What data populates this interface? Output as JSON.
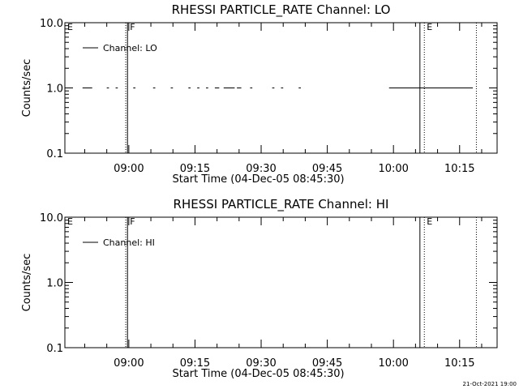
{
  "footer_timestamp": "21-Oct-2021 19:00",
  "chart_data": [
    {
      "type": "line",
      "title": "RHESSI PARTICLE_RATE Channel: LO",
      "xlabel": "Start Time (04-Dec-05 08:45:30)",
      "ylabel": "Counts/sec",
      "x_unit": "minutes since 08:45:30",
      "xlim": [
        0,
        98
      ],
      "ylim": [
        0.1,
        10.0
      ],
      "y_scale": "log",
      "xtick_labels": [
        "09:00",
        "09:15",
        "09:30",
        "09:45",
        "10:00",
        "10:15"
      ],
      "xtick_values": [
        14.5,
        29.5,
        44.5,
        59.5,
        74.5,
        89.5
      ],
      "ytick_labels": [
        "0.1",
        "1.0",
        "10.0"
      ],
      "ytick_values": [
        0.1,
        1.0,
        10.0
      ],
      "legend": {
        "position": "top-left",
        "entries": [
          "Channel: LO"
        ]
      },
      "series": [
        {
          "name": "Channel: LO",
          "segments": [
            {
              "x": [
                0.0,
                1.5
              ],
              "y": [
                1.0,
                1.0
              ]
            },
            {
              "x": [
                4.0,
                6.2
              ],
              "y": [
                1.0,
                1.0
              ]
            },
            {
              "x": [
                9.5,
                10.0
              ],
              "y": [
                1.0,
                1.0
              ]
            },
            {
              "x": [
                11.5,
                12.0
              ],
              "y": [
                1.0,
                1.0
              ]
            },
            {
              "x": [
                15.5,
                16.0
              ],
              "y": [
                1.0,
                1.0
              ]
            },
            {
              "x": [
                20.0,
                20.5
              ],
              "y": [
                1.0,
                1.0
              ]
            },
            {
              "x": [
                24.0,
                24.5
              ],
              "y": [
                1.0,
                1.0
              ]
            },
            {
              "x": [
                28.0,
                28.5
              ],
              "y": [
                1.0,
                1.0
              ]
            },
            {
              "x": [
                30.0,
                30.5
              ],
              "y": [
                1.0,
                1.0
              ]
            },
            {
              "x": [
                32.0,
                32.5
              ],
              "y": [
                1.0,
                1.0
              ]
            },
            {
              "x": [
                34.0,
                35.0
              ],
              "y": [
                1.0,
                1.0
              ]
            },
            {
              "x": [
                36.0,
                38.5
              ],
              "y": [
                1.0,
                1.0
              ]
            },
            {
              "x": [
                39.0,
                40.0
              ],
              "y": [
                1.0,
                1.0
              ]
            },
            {
              "x": [
                42.0,
                42.5
              ],
              "y": [
                1.0,
                1.0
              ]
            },
            {
              "x": [
                47.0,
                47.5
              ],
              "y": [
                1.0,
                1.0
              ]
            },
            {
              "x": [
                49.0,
                49.5
              ],
              "y": [
                1.0,
                1.0
              ]
            },
            {
              "x": [
                53.0,
                53.5
              ],
              "y": [
                1.0,
                1.0
              ]
            },
            {
              "x": [
                73.5,
                92.5
              ],
              "y": [
                1.0,
                1.0
              ]
            }
          ]
        }
      ],
      "annotations": [
        {
          "label": "E",
          "x": 0.0,
          "line": "none"
        },
        {
          "label": "",
          "x": 13.8,
          "line": "dotted"
        },
        {
          "label": "F",
          "x": 14.2,
          "line": "solid"
        },
        {
          "label": "",
          "x": 80.5,
          "line": "solid"
        },
        {
          "label": "E",
          "x": 81.5,
          "line": "dotted"
        },
        {
          "label": "",
          "x": 93.3,
          "line": "dotted"
        }
      ]
    },
    {
      "type": "line",
      "title": "RHESSI PARTICLE_RATE Channel: HI",
      "xlabel": "Start Time (04-Dec-05 08:45:30)",
      "ylabel": "Counts/sec",
      "x_unit": "minutes since 08:45:30",
      "xlim": [
        0,
        98
      ],
      "ylim": [
        0.1,
        10.0
      ],
      "y_scale": "log",
      "xtick_labels": [
        "09:00",
        "09:15",
        "09:30",
        "09:45",
        "10:00",
        "10:15"
      ],
      "xtick_values": [
        14.5,
        29.5,
        44.5,
        59.5,
        74.5,
        89.5
      ],
      "ytick_labels": [
        "0.1",
        "1.0",
        "10.0"
      ],
      "ytick_values": [
        0.1,
        1.0,
        10.0
      ],
      "legend": {
        "position": "top-left",
        "entries": [
          "Channel: HI"
        ]
      },
      "series": [
        {
          "name": "Channel: HI",
          "segments": []
        }
      ],
      "annotations": [
        {
          "label": "E",
          "x": 0.0,
          "line": "none"
        },
        {
          "label": "",
          "x": 13.8,
          "line": "dotted"
        },
        {
          "label": "F",
          "x": 14.2,
          "line": "solid"
        },
        {
          "label": "",
          "x": 80.5,
          "line": "solid"
        },
        {
          "label": "E",
          "x": 81.5,
          "line": "dotted"
        },
        {
          "label": "",
          "x": 93.3,
          "line": "dotted"
        }
      ]
    }
  ]
}
